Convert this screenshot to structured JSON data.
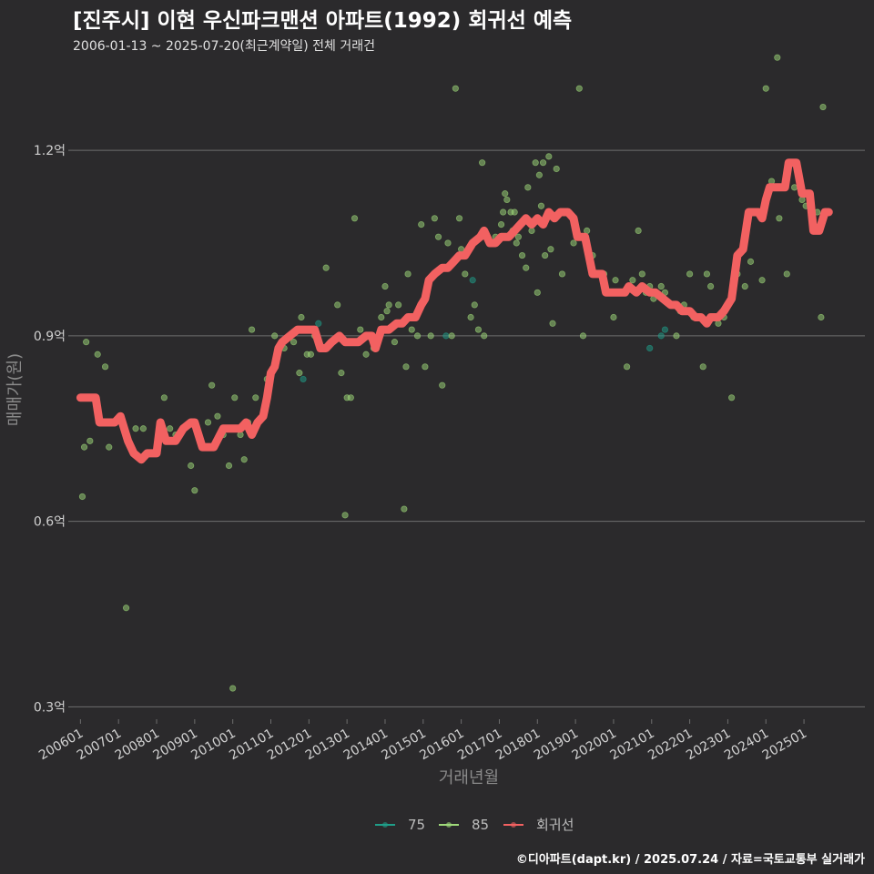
{
  "chart_data": {
    "type": "scatter",
    "title": "[진주시] 이현 우신파크맨션 아파트(1992) 회귀선 예측",
    "subtitle": "2006-01-13 ~ 2025-07-20(최근계약일) 전체 거래건",
    "xlabel": "거래년월",
    "ylabel": "매매가(원)",
    "x_range": [
      2005.8,
      2026.6
    ],
    "ylim": [
      0.28,
      1.34
    ],
    "y_ticks": [
      0.3,
      0.6,
      0.9,
      1.2
    ],
    "y_tick_labels": [
      "0.3억",
      "0.6억",
      "0.9억",
      "1.2억"
    ],
    "x_ticks": [
      2006,
      2007,
      2008,
      2009,
      2010,
      2011,
      2012,
      2013,
      2014,
      2015,
      2016,
      2017,
      2018,
      2019,
      2020,
      2021,
      2022,
      2023,
      2024,
      2025
    ],
    "x_tick_labels": [
      "200601",
      "200701",
      "200801",
      "200901",
      "201001",
      "201101",
      "201201",
      "201301",
      "201401",
      "201501",
      "201601",
      "201701",
      "201801",
      "201901",
      "202001",
      "202101",
      "202201",
      "202301",
      "202401",
      "202501"
    ],
    "legend": [
      {
        "name": "75",
        "color": "#1f9e89"
      },
      {
        "name": "85",
        "color": "#9fda7a"
      },
      {
        "name": "회귀선",
        "color": "#f26161"
      }
    ],
    "series": [
      {
        "name": "75",
        "color": "#1f9e89",
        "points": [
          [
            2011.85,
            0.83
          ],
          [
            2012.25,
            0.92
          ],
          [
            2015.6,
            0.9
          ],
          [
            2016.3,
            0.99
          ],
          [
            2020.95,
            0.88
          ],
          [
            2021.25,
            0.9
          ],
          [
            2021.35,
            0.91
          ]
        ]
      },
      {
        "name": "85",
        "color": "#9fda7a",
        "points": [
          [
            2006.05,
            0.64
          ],
          [
            2006.1,
            0.72
          ],
          [
            2006.15,
            0.89
          ],
          [
            2006.25,
            0.73
          ],
          [
            2006.45,
            0.87
          ],
          [
            2006.65,
            0.85
          ],
          [
            2006.75,
            0.72
          ],
          [
            2007.2,
            0.46
          ],
          [
            2007.45,
            0.75
          ],
          [
            2007.65,
            0.75
          ],
          [
            2008.2,
            0.8
          ],
          [
            2008.35,
            0.75
          ],
          [
            2008.5,
            0.74
          ],
          [
            2008.9,
            0.69
          ],
          [
            2009.0,
            0.65
          ],
          [
            2009.35,
            0.76
          ],
          [
            2009.45,
            0.82
          ],
          [
            2009.6,
            0.77
          ],
          [
            2009.75,
            0.74
          ],
          [
            2009.9,
            0.69
          ],
          [
            2010.0,
            0.33
          ],
          [
            2010.05,
            0.8
          ],
          [
            2010.2,
            0.74
          ],
          [
            2010.3,
            0.7
          ],
          [
            2010.4,
            0.76
          ],
          [
            2010.5,
            0.91
          ],
          [
            2010.6,
            0.8
          ],
          [
            2010.9,
            0.83
          ],
          [
            2011.1,
            0.9
          ],
          [
            2011.35,
            0.88
          ],
          [
            2011.6,
            0.89
          ],
          [
            2011.75,
            0.84
          ],
          [
            2011.8,
            0.93
          ],
          [
            2011.95,
            0.87
          ],
          [
            2012.05,
            0.87
          ],
          [
            2012.15,
            0.9
          ],
          [
            2012.3,
            0.88
          ],
          [
            2012.45,
            1.01
          ],
          [
            2012.75,
            0.95
          ],
          [
            2012.85,
            0.84
          ],
          [
            2012.95,
            0.61
          ],
          [
            2013.0,
            0.8
          ],
          [
            2013.1,
            0.8
          ],
          [
            2013.2,
            1.09
          ],
          [
            2013.35,
            0.91
          ],
          [
            2013.5,
            0.87
          ],
          [
            2013.7,
            0.88
          ],
          [
            2013.9,
            0.93
          ],
          [
            2014.0,
            0.98
          ],
          [
            2014.05,
            0.94
          ],
          [
            2014.1,
            0.95
          ],
          [
            2014.25,
            0.89
          ],
          [
            2014.35,
            0.95
          ],
          [
            2014.5,
            0.62
          ],
          [
            2014.55,
            0.85
          ],
          [
            2014.6,
            1.0
          ],
          [
            2014.7,
            0.91
          ],
          [
            2014.85,
            0.9
          ],
          [
            2014.95,
            1.08
          ],
          [
            2015.05,
            0.85
          ],
          [
            2015.2,
            0.9
          ],
          [
            2015.3,
            1.09
          ],
          [
            2015.4,
            1.06
          ],
          [
            2015.5,
            0.82
          ],
          [
            2015.65,
            1.05
          ],
          [
            2015.75,
            0.9
          ],
          [
            2015.85,
            1.3
          ],
          [
            2015.95,
            1.09
          ],
          [
            2016.0,
            1.04
          ],
          [
            2016.1,
            1.0
          ],
          [
            2016.25,
            0.93
          ],
          [
            2016.35,
            0.95
          ],
          [
            2016.45,
            0.91
          ],
          [
            2016.55,
            1.18
          ],
          [
            2016.6,
            0.9
          ],
          [
            2016.75,
            1.05
          ],
          [
            2016.9,
            1.06
          ],
          [
            2017.05,
            1.08
          ],
          [
            2017.1,
            1.1
          ],
          [
            2017.15,
            1.13
          ],
          [
            2017.2,
            1.12
          ],
          [
            2017.3,
            1.1
          ],
          [
            2017.35,
            1.07
          ],
          [
            2017.4,
            1.1
          ],
          [
            2017.45,
            1.05
          ],
          [
            2017.5,
            1.06
          ],
          [
            2017.6,
            1.03
          ],
          [
            2017.7,
            1.01
          ],
          [
            2017.75,
            1.14
          ],
          [
            2017.85,
            1.07
          ],
          [
            2017.95,
            1.18
          ],
          [
            2018.0,
            0.97
          ],
          [
            2018.05,
            1.16
          ],
          [
            2018.1,
            1.11
          ],
          [
            2018.15,
            1.18
          ],
          [
            2018.2,
            1.03
          ],
          [
            2018.3,
            1.19
          ],
          [
            2018.35,
            1.04
          ],
          [
            2018.4,
            0.92
          ],
          [
            2018.5,
            1.17
          ],
          [
            2018.65,
            1.0
          ],
          [
            2018.8,
            1.1
          ],
          [
            2018.95,
            1.05
          ],
          [
            2019.1,
            1.3
          ],
          [
            2019.2,
            0.9
          ],
          [
            2019.3,
            1.07
          ],
          [
            2019.45,
            1.03
          ],
          [
            2019.75,
            1.0
          ],
          [
            2019.85,
            0.97
          ],
          [
            2020.0,
            0.93
          ],
          [
            2020.05,
            0.99
          ],
          [
            2020.35,
            0.85
          ],
          [
            2020.5,
            0.99
          ],
          [
            2020.65,
            1.07
          ],
          [
            2020.75,
            1.0
          ],
          [
            2020.85,
            0.97
          ],
          [
            2020.95,
            0.98
          ],
          [
            2021.05,
            0.96
          ],
          [
            2021.25,
            0.98
          ],
          [
            2021.35,
            0.97
          ],
          [
            2021.5,
            0.95
          ],
          [
            2021.65,
            0.9
          ],
          [
            2021.75,
            0.94
          ],
          [
            2021.85,
            0.95
          ],
          [
            2022.0,
            1.0
          ],
          [
            2022.1,
            0.93
          ],
          [
            2022.25,
            0.93
          ],
          [
            2022.35,
            0.85
          ],
          [
            2022.45,
            1.0
          ],
          [
            2022.55,
            0.98
          ],
          [
            2022.6,
            0.93
          ],
          [
            2022.75,
            0.92
          ],
          [
            2022.9,
            0.93
          ],
          [
            2023.1,
            0.8
          ],
          [
            2023.25,
            1.0
          ],
          [
            2023.45,
            0.98
          ],
          [
            2023.6,
            1.02
          ],
          [
            2023.8,
            1.1
          ],
          [
            2023.9,
            0.99
          ],
          [
            2024.0,
            1.3
          ],
          [
            2024.15,
            1.15
          ],
          [
            2024.3,
            1.35
          ],
          [
            2024.35,
            1.09
          ],
          [
            2024.55,
            1.0
          ],
          [
            2024.75,
            1.14
          ],
          [
            2024.95,
            1.12
          ],
          [
            2025.05,
            1.11
          ],
          [
            2025.2,
            1.11
          ],
          [
            2025.35,
            1.1
          ],
          [
            2025.45,
            0.93
          ],
          [
            2025.5,
            1.27
          ]
        ]
      }
    ],
    "regression": {
      "name": "회귀선",
      "color": "#f26161",
      "points": [
        [
          2006.0,
          0.8
        ],
        [
          2006.4,
          0.8
        ],
        [
          2006.5,
          0.76
        ],
        [
          2006.9,
          0.76
        ],
        [
          2007.05,
          0.77
        ],
        [
          2007.25,
          0.73
        ],
        [
          2007.4,
          0.71
        ],
        [
          2007.6,
          0.7
        ],
        [
          2007.75,
          0.71
        ],
        [
          2008.0,
          0.71
        ],
        [
          2008.1,
          0.76
        ],
        [
          2008.25,
          0.73
        ],
        [
          2008.5,
          0.73
        ],
        [
          2008.7,
          0.75
        ],
        [
          2008.9,
          0.76
        ],
        [
          2009.0,
          0.76
        ],
        [
          2009.2,
          0.72
        ],
        [
          2009.5,
          0.72
        ],
        [
          2009.75,
          0.75
        ],
        [
          2010.2,
          0.75
        ],
        [
          2010.35,
          0.76
        ],
        [
          2010.5,
          0.74
        ],
        [
          2010.65,
          0.76
        ],
        [
          2010.8,
          0.77
        ],
        [
          2010.9,
          0.8
        ],
        [
          2011.0,
          0.84
        ],
        [
          2011.1,
          0.85
        ],
        [
          2011.2,
          0.88
        ],
        [
          2011.3,
          0.89
        ],
        [
          2011.5,
          0.9
        ],
        [
          2011.7,
          0.91
        ],
        [
          2012.0,
          0.91
        ],
        [
          2012.15,
          0.91
        ],
        [
          2012.3,
          0.88
        ],
        [
          2012.45,
          0.88
        ],
        [
          2012.6,
          0.89
        ],
        [
          2012.8,
          0.9
        ],
        [
          2012.95,
          0.89
        ],
        [
          2013.3,
          0.89
        ],
        [
          2013.5,
          0.9
        ],
        [
          2013.65,
          0.9
        ],
        [
          2013.75,
          0.88
        ],
        [
          2013.9,
          0.91
        ],
        [
          2014.1,
          0.91
        ],
        [
          2014.3,
          0.92
        ],
        [
          2014.45,
          0.92
        ],
        [
          2014.6,
          0.93
        ],
        [
          2014.8,
          0.93
        ],
        [
          2014.95,
          0.95
        ],
        [
          2015.05,
          0.96
        ],
        [
          2015.15,
          0.99
        ],
        [
          2015.3,
          1.0
        ],
        [
          2015.5,
          1.01
        ],
        [
          2015.65,
          1.01
        ],
        [
          2015.8,
          1.02
        ],
        [
          2015.95,
          1.03
        ],
        [
          2016.1,
          1.03
        ],
        [
          2016.3,
          1.05
        ],
        [
          2016.5,
          1.06
        ],
        [
          2016.6,
          1.07
        ],
        [
          2016.75,
          1.05
        ],
        [
          2016.9,
          1.05
        ],
        [
          2017.05,
          1.06
        ],
        [
          2017.25,
          1.06
        ],
        [
          2017.4,
          1.07
        ],
        [
          2017.55,
          1.08
        ],
        [
          2017.7,
          1.09
        ],
        [
          2017.85,
          1.08
        ],
        [
          2018.0,
          1.09
        ],
        [
          2018.15,
          1.08
        ],
        [
          2018.3,
          1.1
        ],
        [
          2018.45,
          1.09
        ],
        [
          2018.6,
          1.1
        ],
        [
          2018.8,
          1.1
        ],
        [
          2018.95,
          1.09
        ],
        [
          2019.05,
          1.06
        ],
        [
          2019.25,
          1.06
        ],
        [
          2019.35,
          1.03
        ],
        [
          2019.45,
          1.0
        ],
        [
          2019.7,
          1.0
        ],
        [
          2019.8,
          0.97
        ],
        [
          2020.1,
          0.97
        ],
        [
          2020.3,
          0.97
        ],
        [
          2020.4,
          0.98
        ],
        [
          2020.6,
          0.97
        ],
        [
          2020.75,
          0.98
        ],
        [
          2020.95,
          0.97
        ],
        [
          2021.1,
          0.97
        ],
        [
          2021.3,
          0.96
        ],
        [
          2021.5,
          0.95
        ],
        [
          2021.65,
          0.95
        ],
        [
          2021.8,
          0.94
        ],
        [
          2022.0,
          0.94
        ],
        [
          2022.15,
          0.93
        ],
        [
          2022.3,
          0.93
        ],
        [
          2022.45,
          0.92
        ],
        [
          2022.55,
          0.93
        ],
        [
          2022.75,
          0.93
        ],
        [
          2022.9,
          0.94
        ],
        [
          2023.0,
          0.95
        ],
        [
          2023.1,
          0.96
        ],
        [
          2023.25,
          1.03
        ],
        [
          2023.4,
          1.04
        ],
        [
          2023.55,
          1.1
        ],
        [
          2023.8,
          1.1
        ],
        [
          2023.9,
          1.09
        ],
        [
          2024.0,
          1.12
        ],
        [
          2024.1,
          1.14
        ],
        [
          2024.25,
          1.14
        ],
        [
          2024.5,
          1.14
        ],
        [
          2024.6,
          1.18
        ],
        [
          2024.8,
          1.18
        ],
        [
          2024.95,
          1.13
        ],
        [
          2025.15,
          1.13
        ],
        [
          2025.25,
          1.07
        ],
        [
          2025.4,
          1.07
        ],
        [
          2025.55,
          1.1
        ],
        [
          2025.65,
          1.1
        ]
      ]
    },
    "footer": "©디아파트(dapt.kr) / 2025.07.24 / 자료=국토교통부 실거래가"
  }
}
